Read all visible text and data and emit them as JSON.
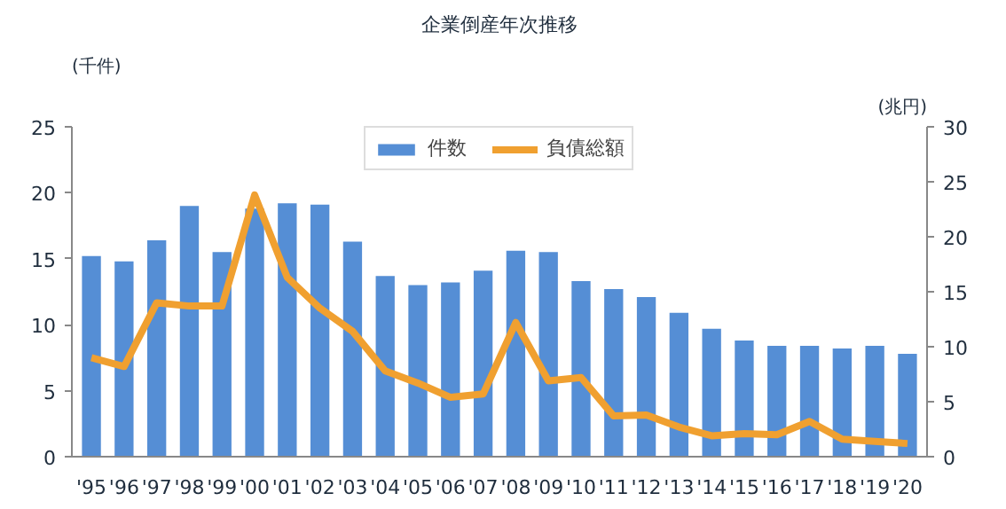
{
  "chart_data": {
    "type": "bar",
    "title": "企業倒産年次推移",
    "ylabel": "(千件)",
    "y2label": "(兆円)",
    "categories": [
      "'95",
      "'96",
      "'97",
      "'98",
      "'99",
      "'00",
      "'01",
      "'02",
      "'03",
      "'04",
      "'05",
      "'06",
      "'07",
      "'08",
      "'09",
      "'10",
      "'11",
      "'12",
      "'13",
      "'14",
      "'15",
      "'16",
      "'17",
      "'18",
      "'19",
      "'20"
    ],
    "series": [
      {
        "name": "件数",
        "color": "#558ed5",
        "values": [
          15.2,
          14.8,
          16.4,
          19.0,
          15.5,
          18.8,
          19.2,
          19.1,
          16.3,
          13.7,
          13.0,
          13.2,
          14.1,
          15.6,
          15.5,
          13.3,
          12.7,
          12.1,
          10.9,
          9.7,
          8.8,
          8.4,
          8.4,
          8.2,
          8.4,
          7.8
        ]
      },
      {
        "name": "負債総額",
        "type": "line",
        "axis": "y2",
        "color": "#f0a030",
        "values": [
          9.0,
          8.2,
          14.0,
          13.7,
          13.7,
          23.8,
          16.3,
          13.5,
          11.4,
          7.8,
          6.7,
          5.4,
          5.7,
          12.2,
          6.9,
          7.2,
          3.7,
          3.8,
          2.7,
          1.9,
          2.1,
          2.0,
          3.2,
          1.6,
          1.4,
          1.2
        ]
      }
    ],
    "ylim": [
      0,
      25
    ],
    "yticks": [
      0,
      5,
      10,
      15,
      20,
      25
    ],
    "y2lim": [
      0,
      30
    ],
    "y2ticks": [
      0,
      5,
      10,
      15,
      20,
      25,
      30
    ],
    "grid": false,
    "legend": "top"
  }
}
